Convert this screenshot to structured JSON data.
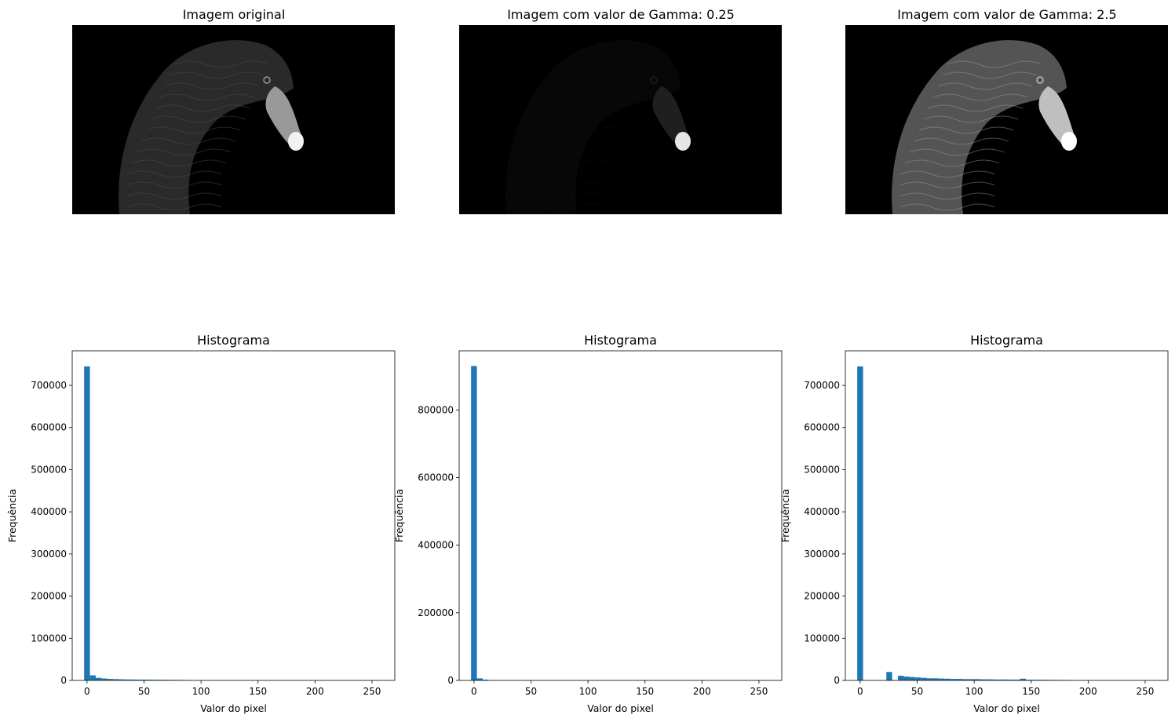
{
  "images": [
    {
      "title": "Imagem original",
      "gamma": null,
      "feather_brightness": 0.3,
      "beak_brightness": 0.6,
      "tip_brightness": 0.95
    },
    {
      "title": "Imagem com valor de Gamma: 0.25",
      "gamma": 0.25,
      "feather_brightness": 0.05,
      "beak_brightness": 0.12,
      "tip_brightness": 0.9
    },
    {
      "title": "Imagem com valor de Gamma: 2.5",
      "gamma": 2.5,
      "feather_brightness": 0.6,
      "beak_brightness": 0.75,
      "tip_brightness": 1.0
    }
  ],
  "colors": {
    "bar": "#1f77b4",
    "image_background": "#000000"
  },
  "chart_data": [
    {
      "type": "bar",
      "title": "Histograma",
      "xlabel": "Valor do pixel",
      "ylabel": "Frequência",
      "xlim": [
        -13,
        270
      ],
      "ylim": [
        0,
        782000
      ],
      "xticks": [
        0,
        50,
        100,
        150,
        200,
        250
      ],
      "yticks": [
        0,
        100000,
        200000,
        300000,
        400000,
        500000,
        600000,
        700000
      ],
      "bin_width": 5.1,
      "bins": [
        {
          "x": -2.55,
          "count": 745000
        },
        {
          "x": 2.55,
          "count": 12000
        },
        {
          "x": 7.65,
          "count": 6000
        },
        {
          "x": 12.75,
          "count": 4500
        },
        {
          "x": 17.85,
          "count": 3500
        },
        {
          "x": 22.95,
          "count": 3000
        },
        {
          "x": 28.05,
          "count": 2500
        },
        {
          "x": 33.15,
          "count": 2200
        },
        {
          "x": 38.25,
          "count": 2000
        },
        {
          "x": 43.35,
          "count": 1800
        },
        {
          "x": 48.45,
          "count": 1700
        },
        {
          "x": 53.55,
          "count": 1600
        },
        {
          "x": 58.65,
          "count": 1500
        },
        {
          "x": 63.75,
          "count": 1400
        },
        {
          "x": 68.85,
          "count": 1300
        },
        {
          "x": 73.95,
          "count": 1200
        },
        {
          "x": 79.05,
          "count": 1100
        },
        {
          "x": 84.15,
          "count": 1000
        }
      ]
    },
    {
      "type": "bar",
      "title": "Histograma",
      "xlabel": "Valor do pixel",
      "ylabel": "Frequência",
      "xlim": [
        -13,
        270
      ],
      "ylim": [
        0,
        975000
      ],
      "xticks": [
        0,
        50,
        100,
        150,
        200,
        250
      ],
      "yticks": [
        0,
        200000,
        400000,
        600000,
        800000
      ],
      "bin_width": 5.1,
      "bins": [
        {
          "x": -2.55,
          "count": 930000
        },
        {
          "x": 2.55,
          "count": 6000
        },
        {
          "x": 7.65,
          "count": 2000
        },
        {
          "x": 12.75,
          "count": 500
        }
      ]
    },
    {
      "type": "bar",
      "title": "Histograma",
      "xlabel": "Valor do pixel",
      "ylabel": "Frequência",
      "xlim": [
        -13,
        270
      ],
      "ylim": [
        0,
        782000
      ],
      "xticks": [
        0,
        50,
        100,
        150,
        200,
        250
      ],
      "yticks": [
        0,
        100000,
        200000,
        300000,
        400000,
        500000,
        600000,
        700000
      ],
      "bin_width": 5.1,
      "bins": [
        {
          "x": -2.55,
          "count": 745000
        },
        {
          "x": 2.55,
          "count": 0
        },
        {
          "x": 7.65,
          "count": 0
        },
        {
          "x": 12.75,
          "count": 0
        },
        {
          "x": 17.85,
          "count": 0
        },
        {
          "x": 22.95,
          "count": 20000
        },
        {
          "x": 28.05,
          "count": 500
        },
        {
          "x": 33.15,
          "count": 11000
        },
        {
          "x": 38.25,
          "count": 9000
        },
        {
          "x": 43.35,
          "count": 8000
        },
        {
          "x": 48.45,
          "count": 7000
        },
        {
          "x": 53.55,
          "count": 6000
        },
        {
          "x": 58.65,
          "count": 5000
        },
        {
          "x": 63.75,
          "count": 5000
        },
        {
          "x": 68.85,
          "count": 4500
        },
        {
          "x": 73.95,
          "count": 4000
        },
        {
          "x": 79.05,
          "count": 3500
        },
        {
          "x": 84.15,
          "count": 3500
        },
        {
          "x": 89.25,
          "count": 3000
        },
        {
          "x": 94.35,
          "count": 3000
        },
        {
          "x": 99.45,
          "count": 3000
        },
        {
          "x": 104.55,
          "count": 2500
        },
        {
          "x": 109.65,
          "count": 2500
        },
        {
          "x": 114.75,
          "count": 2200
        },
        {
          "x": 119.85,
          "count": 2000
        },
        {
          "x": 124.95,
          "count": 2000
        },
        {
          "x": 130.05,
          "count": 1800
        },
        {
          "x": 135.15,
          "count": 1800
        },
        {
          "x": 140.25,
          "count": 4000
        },
        {
          "x": 145.35,
          "count": 1500
        },
        {
          "x": 150.45,
          "count": 1500
        },
        {
          "x": 155.55,
          "count": 1400
        },
        {
          "x": 160.65,
          "count": 1300
        },
        {
          "x": 165.75,
          "count": 1200
        },
        {
          "x": 170.85,
          "count": 1100
        },
        {
          "x": 175.95,
          "count": 1000
        },
        {
          "x": 181.05,
          "count": 800
        }
      ]
    }
  ]
}
